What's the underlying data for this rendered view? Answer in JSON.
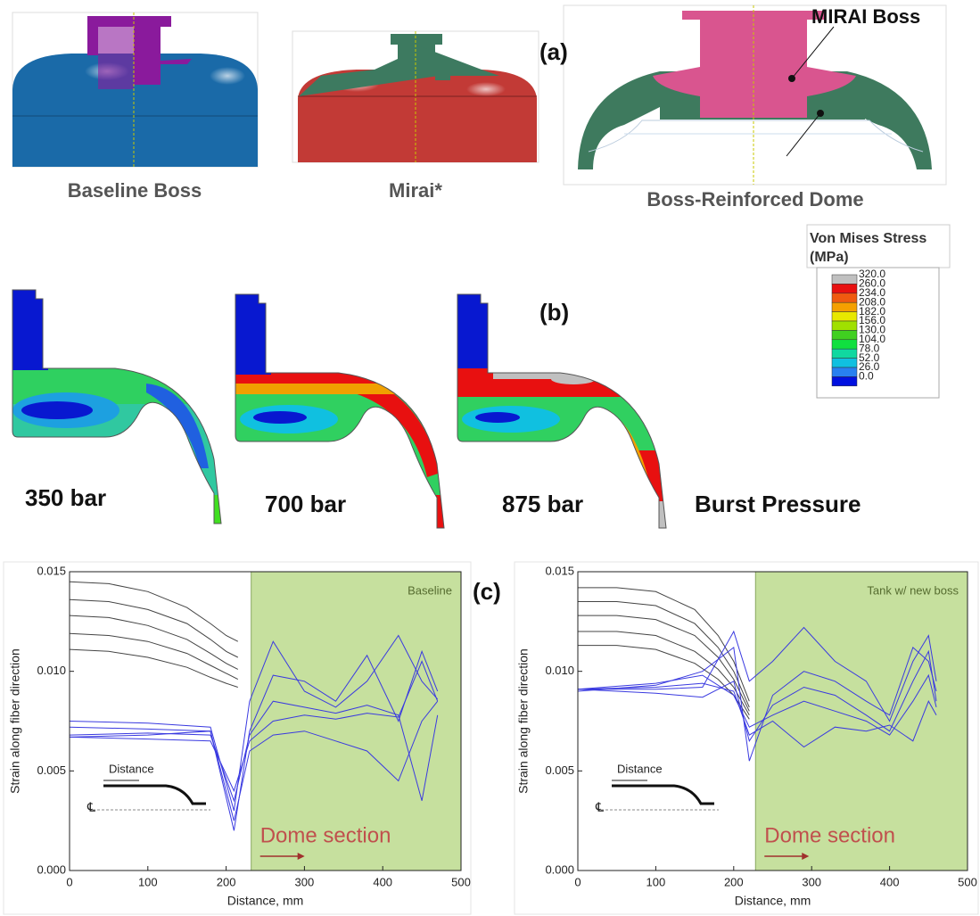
{
  "panel_a": {
    "label": "(a)",
    "captions": [
      "Baseline Boss",
      "Mirai*",
      "Boss-Reinforced Dome"
    ],
    "callout": "MIRAI Boss"
  },
  "panel_b": {
    "label": "(b)",
    "pressures": [
      "350 bar",
      "700 bar",
      "875 bar",
      "Burst Pressure"
    ],
    "legend": {
      "title": [
        "Von Mises Stress",
        "(MPa)"
      ],
      "levels": [
        {
          "value": 320,
          "label": "320.0"
        },
        {
          "value": 260,
          "label": "260.0"
        },
        {
          "value": 234,
          "label": "234.0"
        },
        {
          "value": 208,
          "label": "208.0"
        },
        {
          "value": 182,
          "label": "182.0"
        },
        {
          "value": 156,
          "label": "156.0"
        },
        {
          "value": 130,
          "label": "130.0"
        },
        {
          "value": 104,
          "label": "104.0"
        },
        {
          "value": 78,
          "label": "78.0"
        },
        {
          "value": 52,
          "label": "52.0"
        },
        {
          "value": 26,
          "label": "26.0"
        },
        {
          "value": 0,
          "label": "0.0"
        }
      ],
      "colors": [
        "#c0c0c0",
        "#e81010",
        "#f05a10",
        "#f5a000",
        "#e8e800",
        "#a0e000",
        "#40d020",
        "#10e040",
        "#10d8a0",
        "#10c0e0",
        "#2880f0",
        "#0010e0"
      ]
    }
  },
  "panel_c_label": "(c)",
  "chart_data": [
    {
      "type": "line",
      "annotation": "Baseline",
      "shade_label": "Dome section",
      "inset_label": "Distance",
      "centerline_label": "℄",
      "xlabel": "Distance, mm",
      "ylabel": "Strain along fiber direction",
      "xlim": [
        0,
        500
      ],
      "ylim": [
        0,
        0.015
      ],
      "xticks": [
        0,
        100,
        200,
        300,
        400,
        500
      ],
      "yticks": [
        {
          "value": 0,
          "label": "0.000"
        },
        {
          "value": 0.005,
          "label": "0.005"
        },
        {
          "value": 0.01,
          "label": "0.010"
        },
        {
          "value": 0.015,
          "label": "0.015"
        }
      ],
      "shade_from": 232,
      "shade_color": "#c6e09e",
      "series": [
        {
          "color": "#444444",
          "x": [
            0,
            50,
            100,
            150,
            180,
            200,
            215
          ],
          "values": [
            0.0145,
            0.0144,
            0.014,
            0.0132,
            0.0124,
            0.0118,
            0.0115
          ]
        },
        {
          "color": "#444444",
          "x": [
            0,
            50,
            100,
            150,
            180,
            200,
            215
          ],
          "values": [
            0.0136,
            0.0135,
            0.0131,
            0.0124,
            0.0116,
            0.011,
            0.0107
          ]
        },
        {
          "color": "#444444",
          "x": [
            0,
            50,
            100,
            150,
            180,
            200,
            215
          ],
          "values": [
            0.0128,
            0.0127,
            0.0123,
            0.0116,
            0.0109,
            0.0104,
            0.0101
          ]
        },
        {
          "color": "#444444",
          "x": [
            0,
            50,
            100,
            150,
            180,
            200,
            215
          ],
          "values": [
            0.0119,
            0.0118,
            0.0115,
            0.0109,
            0.0103,
            0.0099,
            0.0096
          ]
        },
        {
          "color": "#444444",
          "x": [
            0,
            50,
            100,
            150,
            180,
            200,
            215
          ],
          "values": [
            0.0111,
            0.011,
            0.0107,
            0.0102,
            0.0097,
            0.0094,
            0.0092
          ]
        },
        {
          "color": "#3a3ae0",
          "x": [
            0,
            100,
            180,
            210,
            230,
            260,
            300,
            340,
            380,
            420,
            450,
            470
          ],
          "values": [
            0.0075,
            0.0074,
            0.0072,
            0.003,
            0.0085,
            0.0115,
            0.009,
            0.0082,
            0.0095,
            0.0118,
            0.0095,
            0.0086
          ]
        },
        {
          "color": "#3a3ae0",
          "x": [
            0,
            100,
            180,
            210,
            230,
            260,
            300,
            340,
            380,
            420,
            450,
            470
          ],
          "values": [
            0.0067,
            0.0068,
            0.007,
            0.002,
            0.007,
            0.0098,
            0.0095,
            0.0085,
            0.0108,
            0.0075,
            0.011,
            0.009
          ]
        },
        {
          "color": "#3a3ae0",
          "x": [
            0,
            100,
            180,
            210,
            230,
            260,
            300,
            340,
            380,
            420,
            450,
            470
          ],
          "values": [
            0.0067,
            0.0066,
            0.0065,
            0.004,
            0.0065,
            0.0075,
            0.0078,
            0.0076,
            0.0079,
            0.0077,
            0.0105,
            0.0085
          ]
        },
        {
          "color": "#3a3ae0",
          "x": [
            0,
            100,
            180,
            210,
            230,
            260,
            300,
            340,
            380,
            420,
            450,
            470
          ],
          "values": [
            0.0072,
            0.0071,
            0.007,
            0.0025,
            0.006,
            0.0068,
            0.007,
            0.0065,
            0.006,
            0.0045,
            0.0075,
            0.0085
          ]
        },
        {
          "color": "#3a3ae0",
          "x": [
            0,
            100,
            180,
            210,
            230,
            260,
            300,
            340,
            380,
            420,
            450,
            470
          ],
          "values": [
            0.0068,
            0.0069,
            0.0068,
            0.0035,
            0.0068,
            0.0085,
            0.0082,
            0.0079,
            0.0083,
            0.0078,
            0.0035,
            0.0078
          ]
        }
      ]
    },
    {
      "type": "line",
      "annotation": "Tank w/ new boss",
      "shade_label": "Dome section",
      "inset_label": "Distance",
      "centerline_label": "℄",
      "xlabel": "Distance, mm",
      "ylabel": "Strain along fiber direction",
      "xlim": [
        0,
        500
      ],
      "ylim": [
        0,
        0.015
      ],
      "xticks": [
        0,
        100,
        200,
        300,
        400,
        500
      ],
      "yticks": [
        {
          "value": 0,
          "label": "0.000"
        },
        {
          "value": 0.005,
          "label": "0.005"
        },
        {
          "value": 0.01,
          "label": "0.010"
        },
        {
          "value": 0.015,
          "label": "0.015"
        }
      ],
      "shade_from": 228,
      "shade_color": "#c6e09e",
      "series": [
        {
          "color": "#444444",
          "x": [
            0,
            50,
            100,
            150,
            180,
            200,
            220
          ],
          "values": [
            0.0142,
            0.0142,
            0.014,
            0.0131,
            0.0118,
            0.0105,
            0.0085
          ]
        },
        {
          "color": "#444444",
          "x": [
            0,
            50,
            100,
            150,
            180,
            200,
            220
          ],
          "values": [
            0.0135,
            0.0135,
            0.0133,
            0.0124,
            0.0112,
            0.01,
            0.0082
          ]
        },
        {
          "color": "#444444",
          "x": [
            0,
            50,
            100,
            150,
            180,
            200,
            220
          ],
          "values": [
            0.0128,
            0.0128,
            0.0126,
            0.0118,
            0.0107,
            0.0096,
            0.008
          ]
        },
        {
          "color": "#444444",
          "x": [
            0,
            50,
            100,
            150,
            180,
            200,
            220
          ],
          "values": [
            0.012,
            0.012,
            0.0118,
            0.011,
            0.0101,
            0.0092,
            0.0078
          ]
        },
        {
          "color": "#444444",
          "x": [
            0,
            50,
            100,
            150,
            180,
            200,
            220
          ],
          "values": [
            0.0113,
            0.0113,
            0.0111,
            0.0104,
            0.0096,
            0.0088,
            0.0076
          ]
        },
        {
          "color": "#3a3ae0",
          "x": [
            0,
            100,
            160,
            200,
            220,
            250,
            290,
            330,
            370,
            400,
            430,
            450,
            460
          ],
          "values": [
            0.0091,
            0.0091,
            0.0092,
            0.012,
            0.0095,
            0.0105,
            0.0122,
            0.0105,
            0.0095,
            0.0075,
            0.0105,
            0.0118,
            0.0095
          ]
        },
        {
          "color": "#3a3ae0",
          "x": [
            0,
            100,
            160,
            200,
            220,
            250,
            290,
            330,
            370,
            400,
            430,
            450,
            460
          ],
          "values": [
            0.009,
            0.0093,
            0.01,
            0.0112,
            0.0055,
            0.0088,
            0.01,
            0.0095,
            0.0085,
            0.0078,
            0.0112,
            0.0105,
            0.009
          ]
        },
        {
          "color": "#3a3ae0",
          "x": [
            0,
            100,
            160,
            200,
            220,
            250,
            290,
            330,
            370,
            400,
            430,
            450,
            460
          ],
          "values": [
            0.0091,
            0.0089,
            0.0087,
            0.0095,
            0.0065,
            0.0083,
            0.0092,
            0.0088,
            0.0078,
            0.007,
            0.0095,
            0.011,
            0.0085
          ]
        },
        {
          "color": "#3a3ae0",
          "x": [
            0,
            100,
            160,
            200,
            220,
            250,
            290,
            330,
            370,
            400,
            430,
            450,
            460
          ],
          "values": [
            0.0091,
            0.0094,
            0.0098,
            0.0088,
            0.0072,
            0.0078,
            0.0085,
            0.008,
            0.0075,
            0.0068,
            0.0085,
            0.0098,
            0.0082
          ]
        },
        {
          "color": "#3a3ae0",
          "x": [
            0,
            100,
            160,
            200,
            220,
            250,
            290,
            330,
            370,
            400,
            430,
            450,
            460
          ],
          "values": [
            0.0091,
            0.0092,
            0.0094,
            0.009,
            0.0068,
            0.0075,
            0.0062,
            0.0072,
            0.007,
            0.0073,
            0.0065,
            0.0085,
            0.0078
          ]
        }
      ]
    }
  ]
}
